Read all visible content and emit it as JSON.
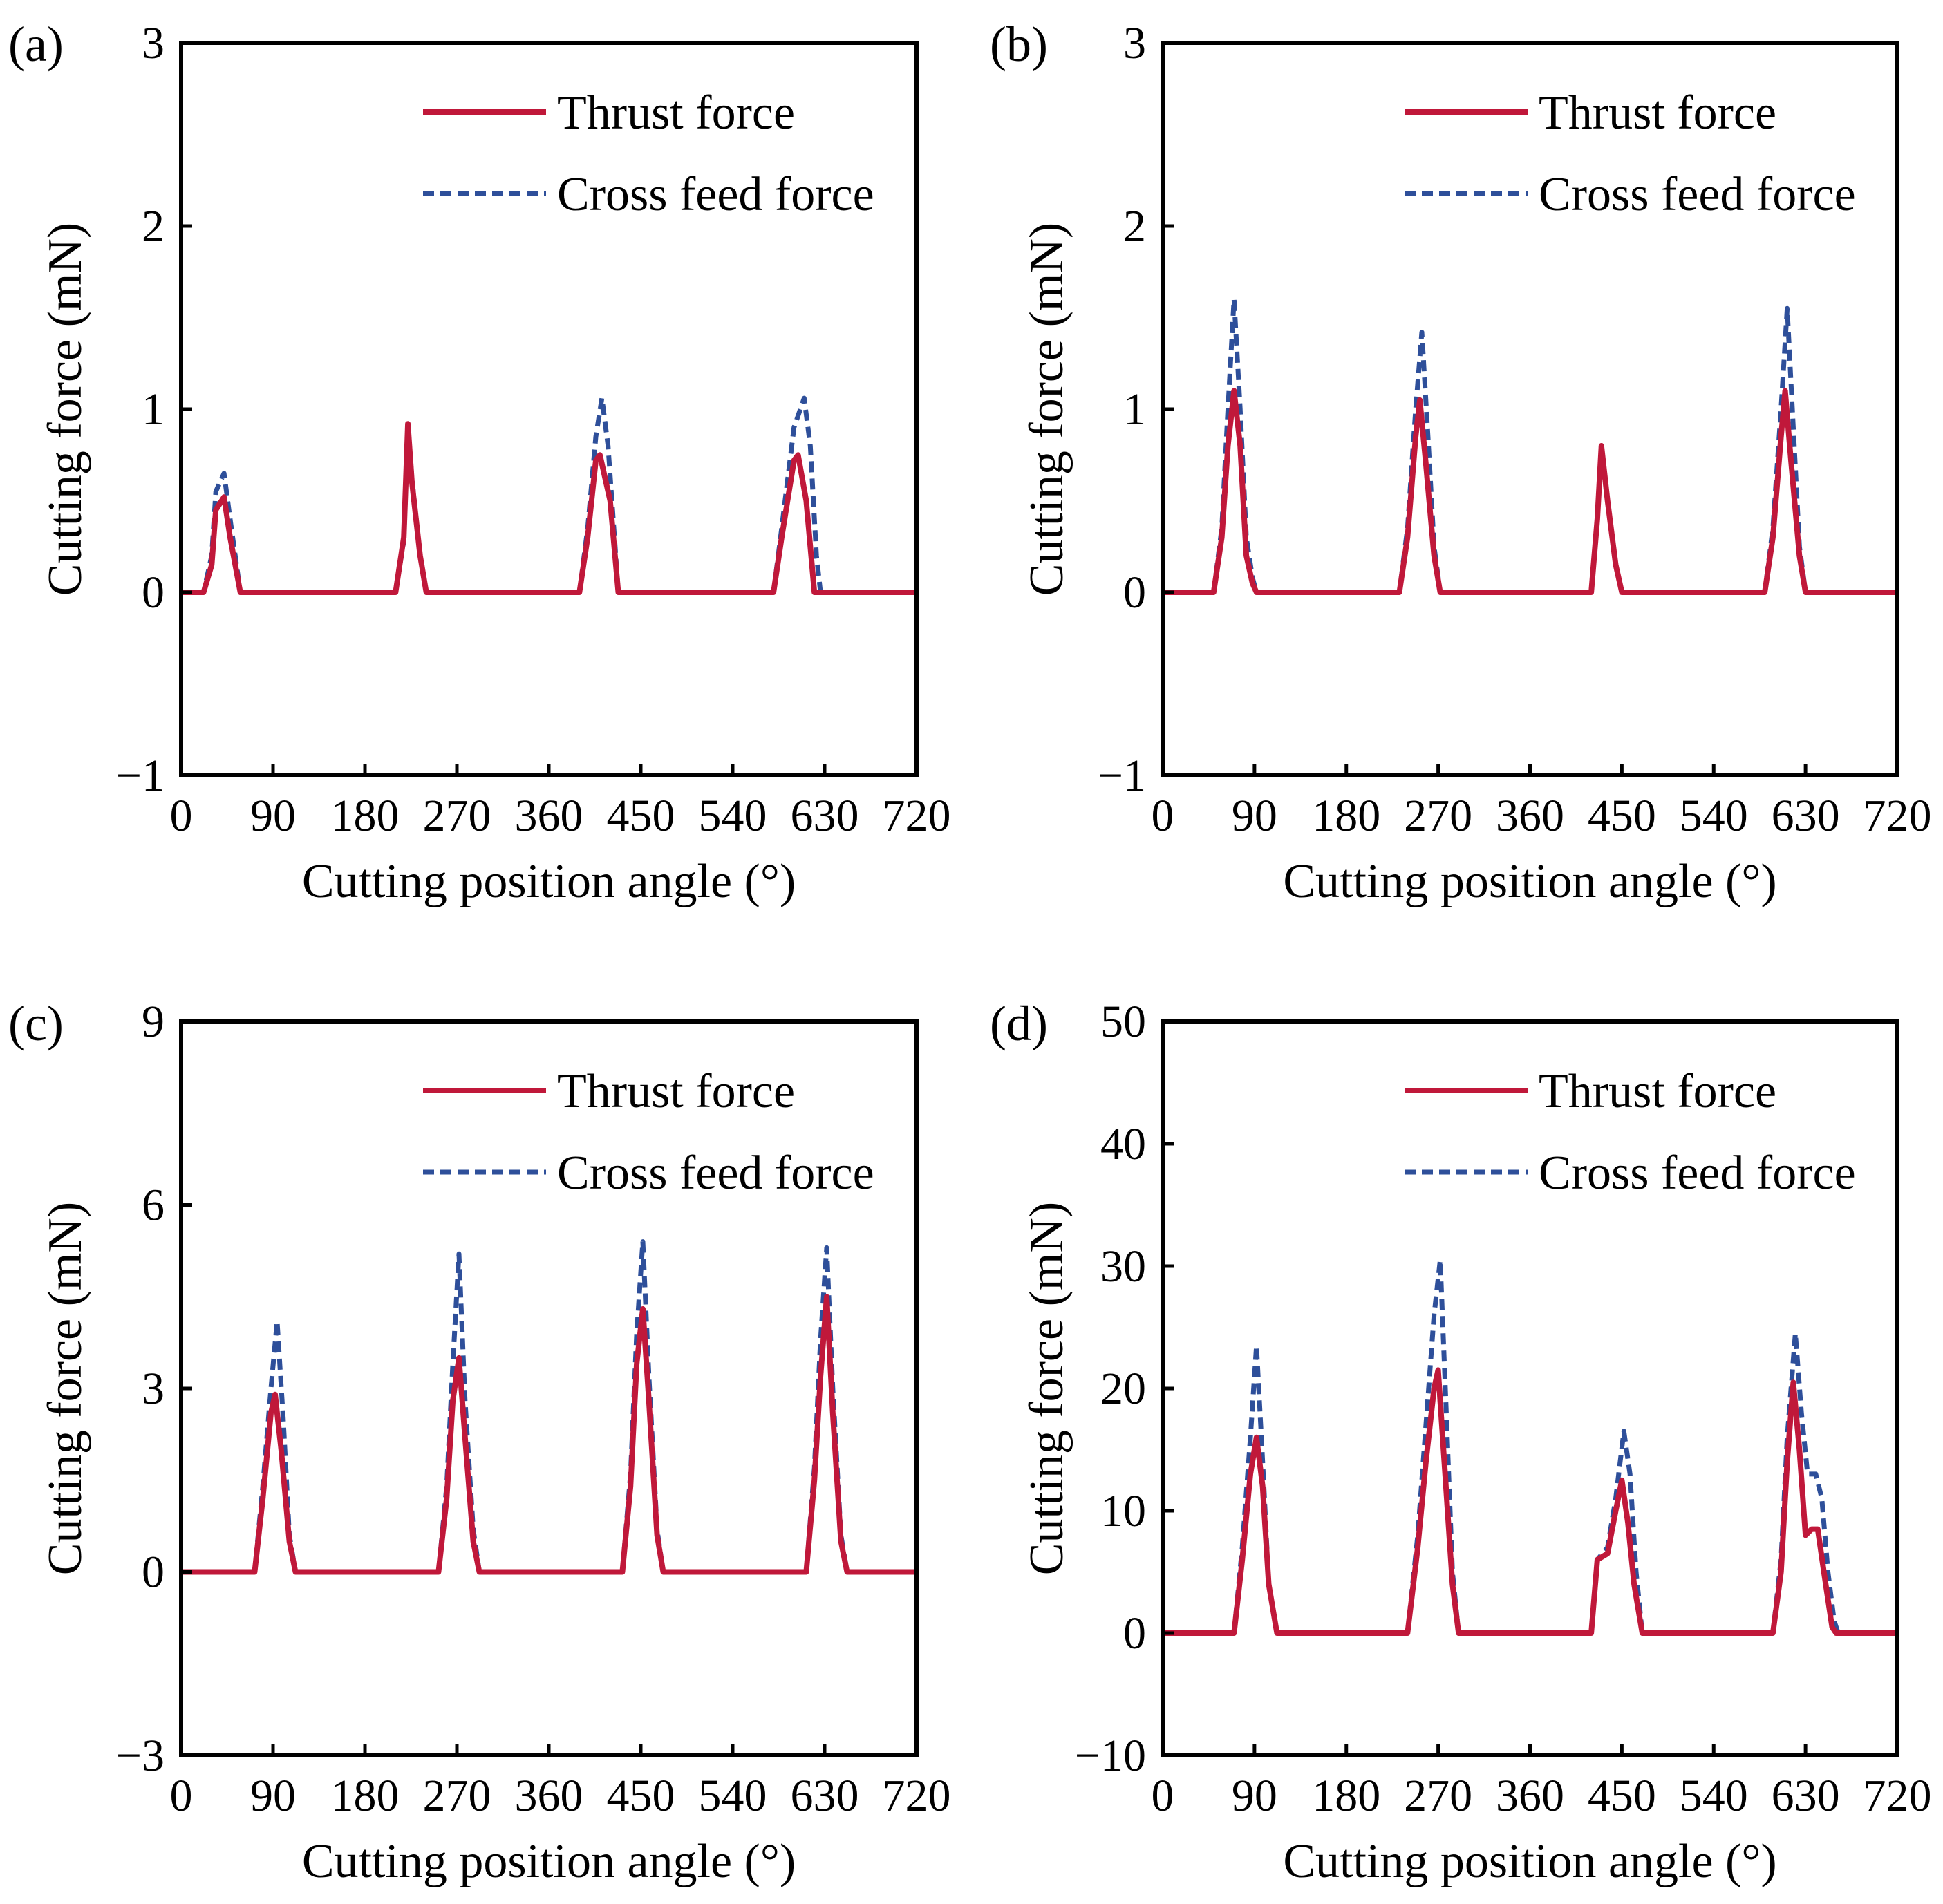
{
  "figure": {
    "panels": [
      {
        "label": "(a)",
        "chart_index": 0
      },
      {
        "label": "(b)",
        "chart_index": 1
      },
      {
        "label": "(c)",
        "chart_index": 2
      },
      {
        "label": "(d)",
        "chart_index": 3
      }
    ]
  },
  "chart_data": [
    {
      "type": "line",
      "title": "(a)",
      "xlabel": "Cutting position angle (°)",
      "ylabel": "Cutting force (mN)",
      "xlim": [
        0,
        720
      ],
      "ylim": [
        -1,
        3
      ],
      "xticks": [
        0,
        90,
        180,
        270,
        360,
        450,
        540,
        630,
        720
      ],
      "xtick_labels": [
        "0",
        "90",
        "180",
        "270",
        "360",
        "450",
        "540",
        "630",
        "720"
      ],
      "yticks": [
        -1,
        0,
        1,
        2,
        3
      ],
      "ytick_labels": [
        "−1",
        "0",
        "1",
        "2",
        "3"
      ],
      "legend_position": "top-right",
      "series": [
        {
          "name": "Thrust force",
          "color": "#c0183a",
          "style": "solid",
          "x": [
            0,
            22,
            30,
            34,
            42,
            48,
            58,
            62,
            720
          ],
          "y": [
            0,
            0,
            0.15,
            0.45,
            0.52,
            0.3,
            0,
            0,
            0
          ]
        },
        {
          "name": "Cross feed force",
          "color": "#2e4f9a",
          "style": "dashed",
          "x": [
            0,
            22,
            30,
            34,
            42,
            48,
            58,
            62,
            720
          ],
          "y": [
            0,
            0,
            0.2,
            0.55,
            0.65,
            0.4,
            0,
            0,
            0
          ]
        }
      ],
      "series_extra": [
        {
          "name": "Thrust force",
          "x": [
            0,
            210,
            218,
            222,
            226,
            234,
            240,
            246,
            390,
            398,
            406,
            410,
            420,
            428,
            430,
            580,
            588,
            600,
            604,
            612,
            620,
            622,
            720
          ],
          "y": [
            0,
            0,
            0.3,
            0.92,
            0.6,
            0.2,
            0,
            0,
            0,
            0.3,
            0.72,
            0.75,
            0.5,
            0,
            0,
            0,
            0.3,
            0.72,
            0.75,
            0.5,
            0,
            0,
            0
          ]
        },
        {
          "name": "Cross feed force",
          "x": [
            0,
            210,
            218,
            222,
            226,
            234,
            240,
            246,
            390,
            398,
            406,
            412,
            418,
            428,
            430,
            580,
            588,
            600,
            610,
            616,
            622,
            626,
            720
          ],
          "y": [
            0,
            0,
            0.28,
            0.9,
            0.62,
            0.2,
            0,
            0,
            0,
            0.35,
            0.85,
            1.06,
            0.8,
            0,
            0,
            0,
            0.35,
            0.9,
            1.06,
            0.8,
            0.2,
            0,
            0
          ]
        }
      ]
    },
    {
      "type": "line",
      "title": "(b)",
      "xlabel": "Cutting position angle (°)",
      "ylabel": "Cutting force (mN)",
      "xlim": [
        0,
        720
      ],
      "ylim": [
        -1,
        3
      ],
      "xticks": [
        0,
        90,
        180,
        270,
        360,
        450,
        540,
        630,
        720
      ],
      "xtick_labels": [
        "0",
        "90",
        "180",
        "270",
        "360",
        "450",
        "540",
        "630",
        "720"
      ],
      "yticks": [
        -1,
        0,
        1,
        2,
        3
      ],
      "ytick_labels": [
        "−1",
        "0",
        "1",
        "2",
        "3"
      ],
      "legend_position": "top-right",
      "series": [
        {
          "name": "Thrust force",
          "color": "#c0183a",
          "style": "solid",
          "x": [
            0,
            50,
            58,
            64,
            70,
            76,
            82,
            88,
            92,
            720
          ],
          "y": [
            0,
            0,
            0.3,
            0.8,
            1.1,
            0.8,
            0.2,
            0.05,
            0,
            0
          ]
        },
        {
          "name": "Cross feed force",
          "color": "#2e4f9a",
          "style": "dashed",
          "x": [
            0,
            50,
            58,
            64,
            70,
            76,
            82,
            88,
            92,
            720
          ],
          "y": [
            0,
            0,
            0.35,
            1.0,
            1.6,
            1.0,
            0.3,
            0.08,
            0,
            0
          ]
        }
      ],
      "series_extra": [
        {
          "name": "Thrust force",
          "x": [
            0,
            232,
            240,
            248,
            252,
            258,
            266,
            272,
            420,
            426,
            430,
            436,
            444,
            450,
            590,
            598,
            606,
            610,
            616,
            624,
            630,
            720
          ],
          "y": [
            0,
            0,
            0.3,
            0.85,
            1.05,
            0.7,
            0.2,
            0,
            0,
            0.4,
            0.8,
            0.5,
            0.15,
            0,
            0,
            0.3,
            0.85,
            1.1,
            0.7,
            0.2,
            0,
            0
          ]
        },
        {
          "name": "Cross feed force",
          "x": [
            0,
            232,
            240,
            248,
            254,
            260,
            266,
            272,
            420,
            426,
            430,
            436,
            444,
            450,
            590,
            598,
            606,
            612,
            618,
            624,
            630,
            720
          ],
          "y": [
            0,
            0,
            0.35,
            1.0,
            1.42,
            0.85,
            0.25,
            0,
            0,
            0.4,
            0.78,
            0.5,
            0.15,
            0,
            0,
            0.35,
            1.0,
            1.55,
            0.9,
            0.25,
            0,
            0
          ]
        }
      ]
    },
    {
      "type": "line",
      "title": "(c)",
      "xlabel": "Cutting position angle (°)",
      "ylabel": "Cutting force (mN)",
      "xlim": [
        0,
        720
      ],
      "ylim": [
        -3,
        9
      ],
      "xticks": [
        0,
        90,
        180,
        270,
        360,
        450,
        540,
        630,
        720
      ],
      "xtick_labels": [
        "0",
        "90",
        "180",
        "270",
        "360",
        "450",
        "540",
        "630",
        "720"
      ],
      "yticks": [
        -3,
        0,
        3,
        6,
        9
      ],
      "ytick_labels": [
        "−3",
        "0",
        "3",
        "6",
        "9"
      ],
      "legend_position": "top-right",
      "series": [
        {
          "name": "Thrust force",
          "color": "#c0183a",
          "style": "solid",
          "x": [
            0,
            72,
            80,
            88,
            92,
            98,
            106,
            112,
            720
          ],
          "y": [
            0,
            0,
            1.2,
            2.6,
            2.9,
            2.0,
            0.5,
            0,
            0
          ]
        },
        {
          "name": "Cross feed force",
          "color": "#2e4f9a",
          "style": "dashed",
          "x": [
            0,
            72,
            80,
            88,
            94,
            100,
            106,
            112,
            720
          ],
          "y": [
            0,
            0,
            1.4,
            3.0,
            4.1,
            2.5,
            0.6,
            0,
            0
          ]
        }
      ],
      "series_extra": [
        {
          "name": "Thrust force",
          "x": [
            0,
            252,
            260,
            266,
            272,
            278,
            286,
            292,
            432,
            440,
            446,
            452,
            458,
            466,
            472,
            612,
            620,
            626,
            632,
            638,
            646,
            652,
            720
          ],
          "y": [
            0,
            0,
            1.2,
            2.8,
            3.5,
            2.2,
            0.5,
            0,
            0,
            1.4,
            3.4,
            4.3,
            2.8,
            0.6,
            0,
            0,
            1.5,
            3.2,
            4.5,
            2.6,
            0.5,
            0,
            0
          ]
        },
        {
          "name": "Cross feed force",
          "x": [
            0,
            252,
            260,
            266,
            272,
            278,
            286,
            292,
            432,
            440,
            446,
            452,
            458,
            466,
            472,
            612,
            620,
            626,
            632,
            638,
            646,
            652,
            720
          ],
          "y": [
            0,
            0,
            1.4,
            3.4,
            5.2,
            2.8,
            0.7,
            0,
            0,
            1.6,
            3.9,
            5.4,
            3.2,
            0.7,
            0,
            0,
            1.7,
            3.8,
            5.3,
            3.0,
            0.6,
            0,
            0
          ]
        }
      ]
    },
    {
      "type": "line",
      "title": "(d)",
      "xlabel": "Cutting position angle (°)",
      "ylabel": "Cutting force (mN)",
      "xlim": [
        0,
        720
      ],
      "ylim": [
        -10,
        50
      ],
      "xticks": [
        0,
        90,
        180,
        270,
        360,
        450,
        540,
        630,
        720
      ],
      "xtick_labels": [
        "0",
        "90",
        "180",
        "270",
        "360",
        "450",
        "540",
        "630",
        "720"
      ],
      "yticks": [
        -10,
        0,
        10,
        20,
        30,
        40,
        50
      ],
      "ytick_labels": [
        "−10",
        "0",
        "10",
        "20",
        "30",
        "40",
        "50"
      ],
      "legend_position": "top-right",
      "series": [
        {
          "name": "Thrust force",
          "color": "#c0183a",
          "style": "solid",
          "x": [
            0,
            70,
            78,
            86,
            92,
            98,
            104,
            112,
            720
          ],
          "y": [
            0,
            0,
            6,
            13,
            16,
            12,
            4,
            0,
            0
          ]
        },
        {
          "name": "Cross feed force",
          "color": "#2e4f9a",
          "style": "dashed",
          "x": [
            0,
            70,
            78,
            86,
            92,
            98,
            104,
            112,
            720
          ],
          "y": [
            0,
            0,
            7,
            16,
            23.5,
            14,
            4,
            0,
            0
          ]
        }
      ],
      "series_extra": [
        {
          "name": "Thrust force",
          "x": [
            0,
            240,
            250,
            258,
            266,
            270,
            276,
            284,
            290,
            420,
            426,
            436,
            444,
            450,
            456,
            462,
            470,
            598,
            606,
            612,
            618,
            624,
            630,
            636,
            642,
            648,
            656,
            660,
            720
          ],
          "y": [
            0,
            0,
            7,
            14,
            20,
            21.5,
            14,
            4,
            0,
            0,
            6,
            6.5,
            10,
            12.5,
            9,
            4,
            0,
            0,
            5,
            14,
            20.5,
            15,
            8,
            8.5,
            8.5,
            5,
            0.5,
            0,
            0
          ]
        },
        {
          "name": "Cross feed force",
          "x": [
            0,
            240,
            250,
            258,
            266,
            272,
            278,
            284,
            290,
            420,
            426,
            436,
            444,
            452,
            458,
            464,
            470,
            598,
            606,
            612,
            620,
            626,
            632,
            640,
            646,
            652,
            658,
            662,
            720
          ],
          "y": [
            0,
            0,
            8,
            17,
            26,
            30.5,
            18,
            5,
            0,
            0,
            6,
            7,
            11,
            16.5,
            13,
            5,
            0,
            0,
            6,
            16,
            24.5,
            18,
            13,
            13,
            11,
            5,
            1,
            0,
            0
          ]
        }
      ]
    }
  ]
}
